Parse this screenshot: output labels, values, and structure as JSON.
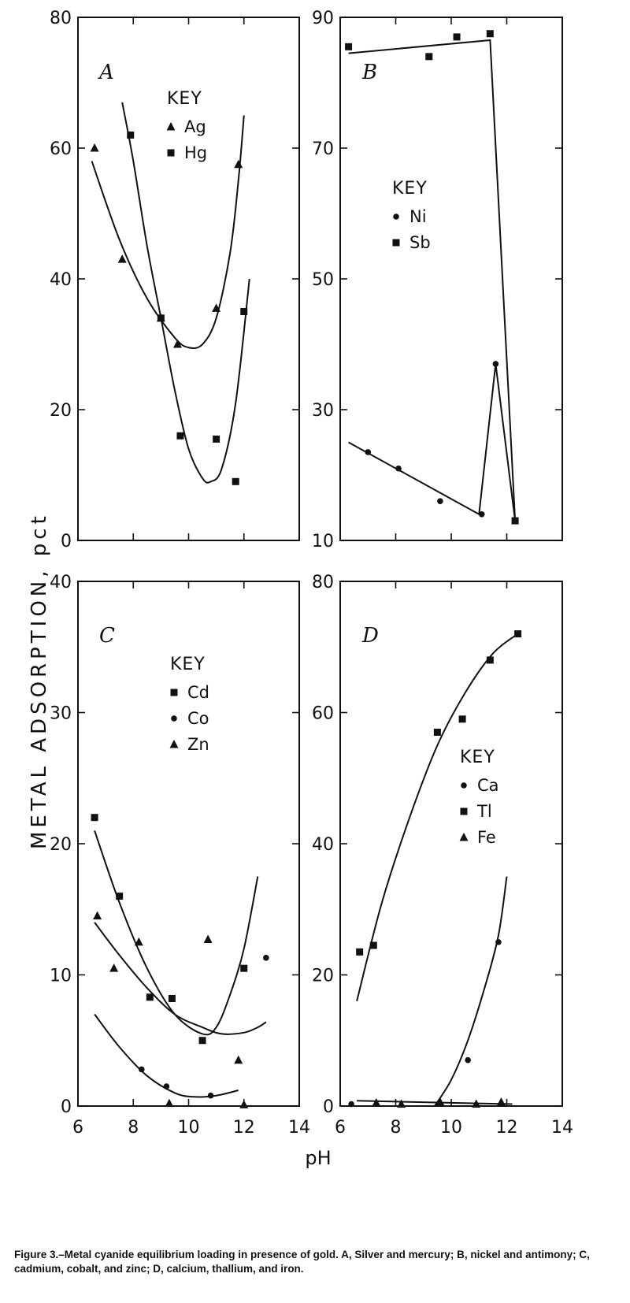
{
  "figure": {
    "ylabel": "METAL ADSORPTION, pct",
    "xlabel": "pH",
    "caption": "Figure 3.–Metal cyanide equilibrium loading in presence of gold. A, Silver and mercury; B, nickel and antimony; C, cadmium, cobalt, and zinc; D, calcium, thallium, and iron."
  },
  "chart_data": [
    {
      "panel": "A",
      "type": "scatter",
      "xlim": [
        6,
        14
      ],
      "ylim": [
        0,
        80
      ],
      "yticks": [
        0,
        20,
        40,
        60,
        80
      ],
      "key_title": "KEY",
      "series": [
        {
          "name": "Ag",
          "marker": "triangle",
          "points": [
            [
              6.6,
              60
            ],
            [
              7.6,
              43
            ],
            [
              9.0,
              34
            ],
            [
              9.6,
              30
            ],
            [
              11.0,
              35.5
            ],
            [
              11.8,
              57.5
            ]
          ],
          "curve": [
            [
              6.5,
              58
            ],
            [
              7.5,
              46
            ],
            [
              8.5,
              37
            ],
            [
              9.5,
              31
            ],
            [
              10.0,
              29.5
            ],
            [
              10.5,
              30
            ],
            [
              11.0,
              34
            ],
            [
              11.5,
              44
            ],
            [
              11.8,
              55
            ],
            [
              12.0,
              65
            ]
          ]
        },
        {
          "name": "Hg",
          "marker": "square",
          "points": [
            [
              7.9,
              62
            ],
            [
              9.0,
              34
            ],
            [
              9.7,
              16
            ],
            [
              11.0,
              15.5
            ],
            [
              11.7,
              9
            ],
            [
              12.0,
              35
            ]
          ],
          "curve": [
            [
              7.6,
              67
            ],
            [
              8.0,
              58
            ],
            [
              8.5,
              45
            ],
            [
              9.0,
              34
            ],
            [
              9.5,
              23
            ],
            [
              10.0,
              14
            ],
            [
              10.5,
              9.5
            ],
            [
              10.8,
              9
            ],
            [
              11.2,
              11
            ],
            [
              11.7,
              21
            ],
            [
              12.2,
              40
            ]
          ]
        }
      ]
    },
    {
      "panel": "B",
      "type": "scatter",
      "xlim": [
        6,
        14
      ],
      "ylim": [
        10,
        90
      ],
      "yticks": [
        10,
        30,
        50,
        70,
        90
      ],
      "key_title": "KEY",
      "series": [
        {
          "name": "Ni",
          "marker": "circle",
          "points": [
            [
              7.0,
              23.5
            ],
            [
              8.1,
              21
            ],
            [
              9.6,
              16
            ],
            [
              11.1,
              14
            ],
            [
              11.6,
              37
            ]
          ],
          "curve": [
            [
              6.3,
              25
            ],
            [
              11.0,
              14
            ],
            [
              11.6,
              37
            ],
            [
              12.3,
              13
            ]
          ]
        },
        {
          "name": "Sb",
          "marker": "square",
          "points": [
            [
              6.3,
              85.5
            ],
            [
              9.2,
              84
            ],
            [
              10.2,
              87
            ],
            [
              11.4,
              87.5
            ],
            [
              12.3,
              13
            ]
          ],
          "curve": [
            [
              6.3,
              84.5
            ],
            [
              11.4,
              86.5
            ],
            [
              12.3,
              13
            ]
          ]
        }
      ]
    },
    {
      "panel": "C",
      "type": "scatter",
      "xlim": [
        6,
        14
      ],
      "ylim": [
        0,
        40
      ],
      "yticks": [
        0,
        10,
        20,
        30,
        40
      ],
      "key_title": "KEY",
      "series": [
        {
          "name": "Cd",
          "marker": "square",
          "points": [
            [
              6.6,
              22
            ],
            [
              7.5,
              16
            ],
            [
              8.6,
              8.3
            ],
            [
              9.4,
              8.2
            ],
            [
              10.5,
              5
            ],
            [
              12.0,
              10.5
            ]
          ],
          "curve": [
            [
              6.6,
              21
            ],
            [
              7.5,
              15.5
            ],
            [
              8.5,
              10.5
            ],
            [
              9.5,
              7
            ],
            [
              10.5,
              5.5
            ],
            [
              11.0,
              6
            ],
            [
              11.5,
              8.5
            ],
            [
              12.0,
              12
            ],
            [
              12.5,
              17.5
            ]
          ]
        },
        {
          "name": "Co",
          "marker": "circle",
          "points": [
            [
              8.3,
              2.8
            ],
            [
              9.2,
              1.5
            ],
            [
              10.8,
              0.8
            ],
            [
              12.8,
              11.3
            ]
          ],
          "curve": [
            [
              6.6,
              7
            ],
            [
              7.5,
              4.5
            ],
            [
              8.5,
              2.3
            ],
            [
              9.5,
              1
            ],
            [
              10.2,
              0.7
            ],
            [
              11.0,
              0.8
            ],
            [
              11.8,
              1.2
            ]
          ]
        },
        {
          "name": "Zn",
          "marker": "triangle",
          "points": [
            [
              6.7,
              14.5
            ],
            [
              7.3,
              10.5
            ],
            [
              8.2,
              12.5
            ],
            [
              9.3,
              0.2
            ],
            [
              10.7,
              12.7
            ],
            [
              11.8,
              3.5
            ],
            [
              12.0,
              0.1
            ]
          ],
          "curve": [
            [
              6.6,
              14
            ],
            [
              7.5,
              11.5
            ],
            [
              8.5,
              9
            ],
            [
              9.5,
              7
            ],
            [
              10.5,
              6
            ],
            [
              11.2,
              5.5
            ],
            [
              12.0,
              5.6
            ],
            [
              12.5,
              6
            ],
            [
              12.8,
              6.4
            ]
          ]
        }
      ]
    },
    {
      "panel": "D",
      "type": "scatter",
      "xlim": [
        6,
        14
      ],
      "ylim": [
        0,
        80
      ],
      "yticks": [
        0,
        20,
        40,
        60,
        80
      ],
      "key_title": "KEY",
      "series": [
        {
          "name": "Ca",
          "marker": "circle",
          "points": [
            [
              6.4,
              0.3
            ],
            [
              10.6,
              7
            ],
            [
              11.7,
              25
            ]
          ],
          "curve": [
            [
              9.4,
              0
            ],
            [
              10.0,
              4
            ],
            [
              10.6,
              10
            ],
            [
              11.2,
              18
            ],
            [
              11.7,
              26
            ],
            [
              12.0,
              35
            ]
          ]
        },
        {
          "name": "Tl",
          "marker": "square",
          "points": [
            [
              6.7,
              23.5
            ],
            [
              7.2,
              24.5
            ],
            [
              9.5,
              57
            ],
            [
              10.4,
              59
            ],
            [
              11.4,
              68
            ],
            [
              12.4,
              72
            ]
          ],
          "curve": [
            [
              6.6,
              16
            ],
            [
              7.5,
              31
            ],
            [
              8.5,
              44
            ],
            [
              9.5,
              55
            ],
            [
              10.5,
              63
            ],
            [
              11.5,
              69
            ],
            [
              12.4,
              72
            ]
          ]
        },
        {
          "name": "Fe",
          "marker": "triangle",
          "points": [
            [
              7.3,
              0.5
            ],
            [
              8.2,
              0.3
            ],
            [
              9.6,
              0.6
            ],
            [
              10.9,
              0.3
            ],
            [
              11.8,
              0.6
            ]
          ],
          "curve": [
            [
              6.6,
              0.8
            ],
            [
              12.2,
              0.3
            ]
          ]
        }
      ]
    }
  ],
  "xaxis": {
    "ticks": [
      6,
      8,
      10,
      12,
      14
    ]
  }
}
